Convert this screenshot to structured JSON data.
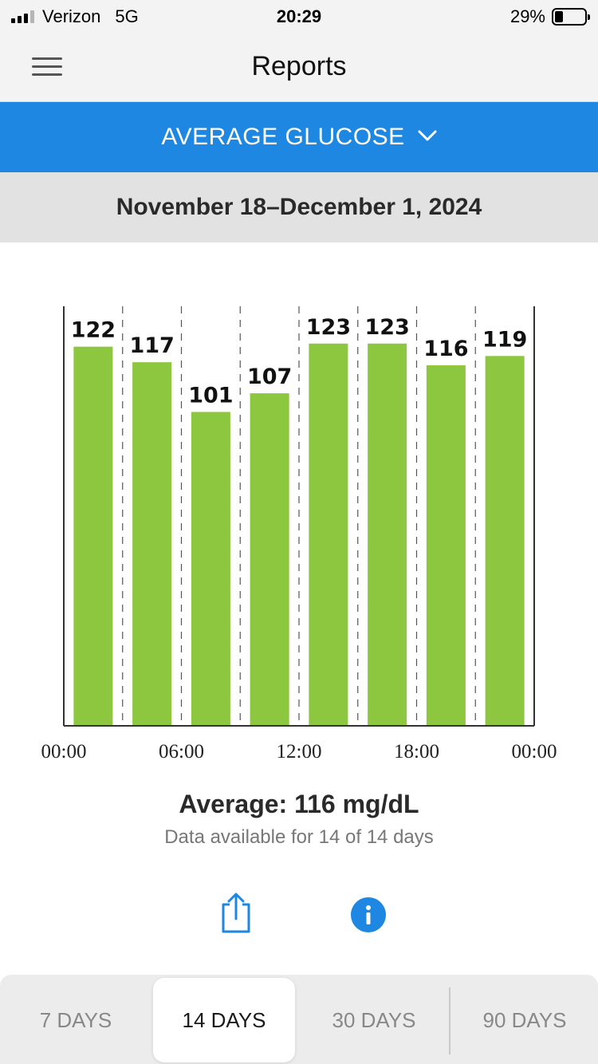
{
  "status_bar": {
    "carrier": "Verizon",
    "network": "5G",
    "time": "20:29",
    "battery_percent": "29%",
    "battery_level": 0.29
  },
  "header": {
    "title": "Reports"
  },
  "report_selector": {
    "label": "AVERAGE GLUCOSE"
  },
  "date_range": "November 18–December 1, 2024",
  "chart_data": {
    "type": "bar",
    "categories": [
      "00:00-03:00",
      "03:00-06:00",
      "06:00-09:00",
      "09:00-12:00",
      "12:00-15:00",
      "15:00-18:00",
      "18:00-21:00",
      "21:00-24:00"
    ],
    "values": [
      122,
      117,
      101,
      107,
      123,
      123,
      116,
      119
    ],
    "value_labels": [
      "122",
      "117",
      "101",
      "107",
      "123",
      "123",
      "116",
      "119"
    ],
    "x_tick_labels": [
      "00:00",
      "06:00",
      "12:00",
      "18:00",
      "00:00"
    ],
    "ylim": [
      0,
      135
    ],
    "bar_color": "#8dc63f",
    "grid": "dashed vertical separators",
    "legend": "none"
  },
  "summary": {
    "average": "Average: 116 mg/dL",
    "availability": "Data available for 14 of 14 days"
  },
  "actions": {
    "share_icon": "share-icon",
    "info_icon": "info-icon"
  },
  "period_tabs": {
    "items": [
      {
        "label": "7 DAYS",
        "active": false
      },
      {
        "label": "14 DAYS",
        "active": true
      },
      {
        "label": "30 DAYS",
        "active": false
      },
      {
        "label": "90 DAYS",
        "active": false
      }
    ]
  },
  "colors": {
    "accent": "#1d87e1",
    "bar": "#8dc63f",
    "date_band": "#e2e2e2"
  }
}
